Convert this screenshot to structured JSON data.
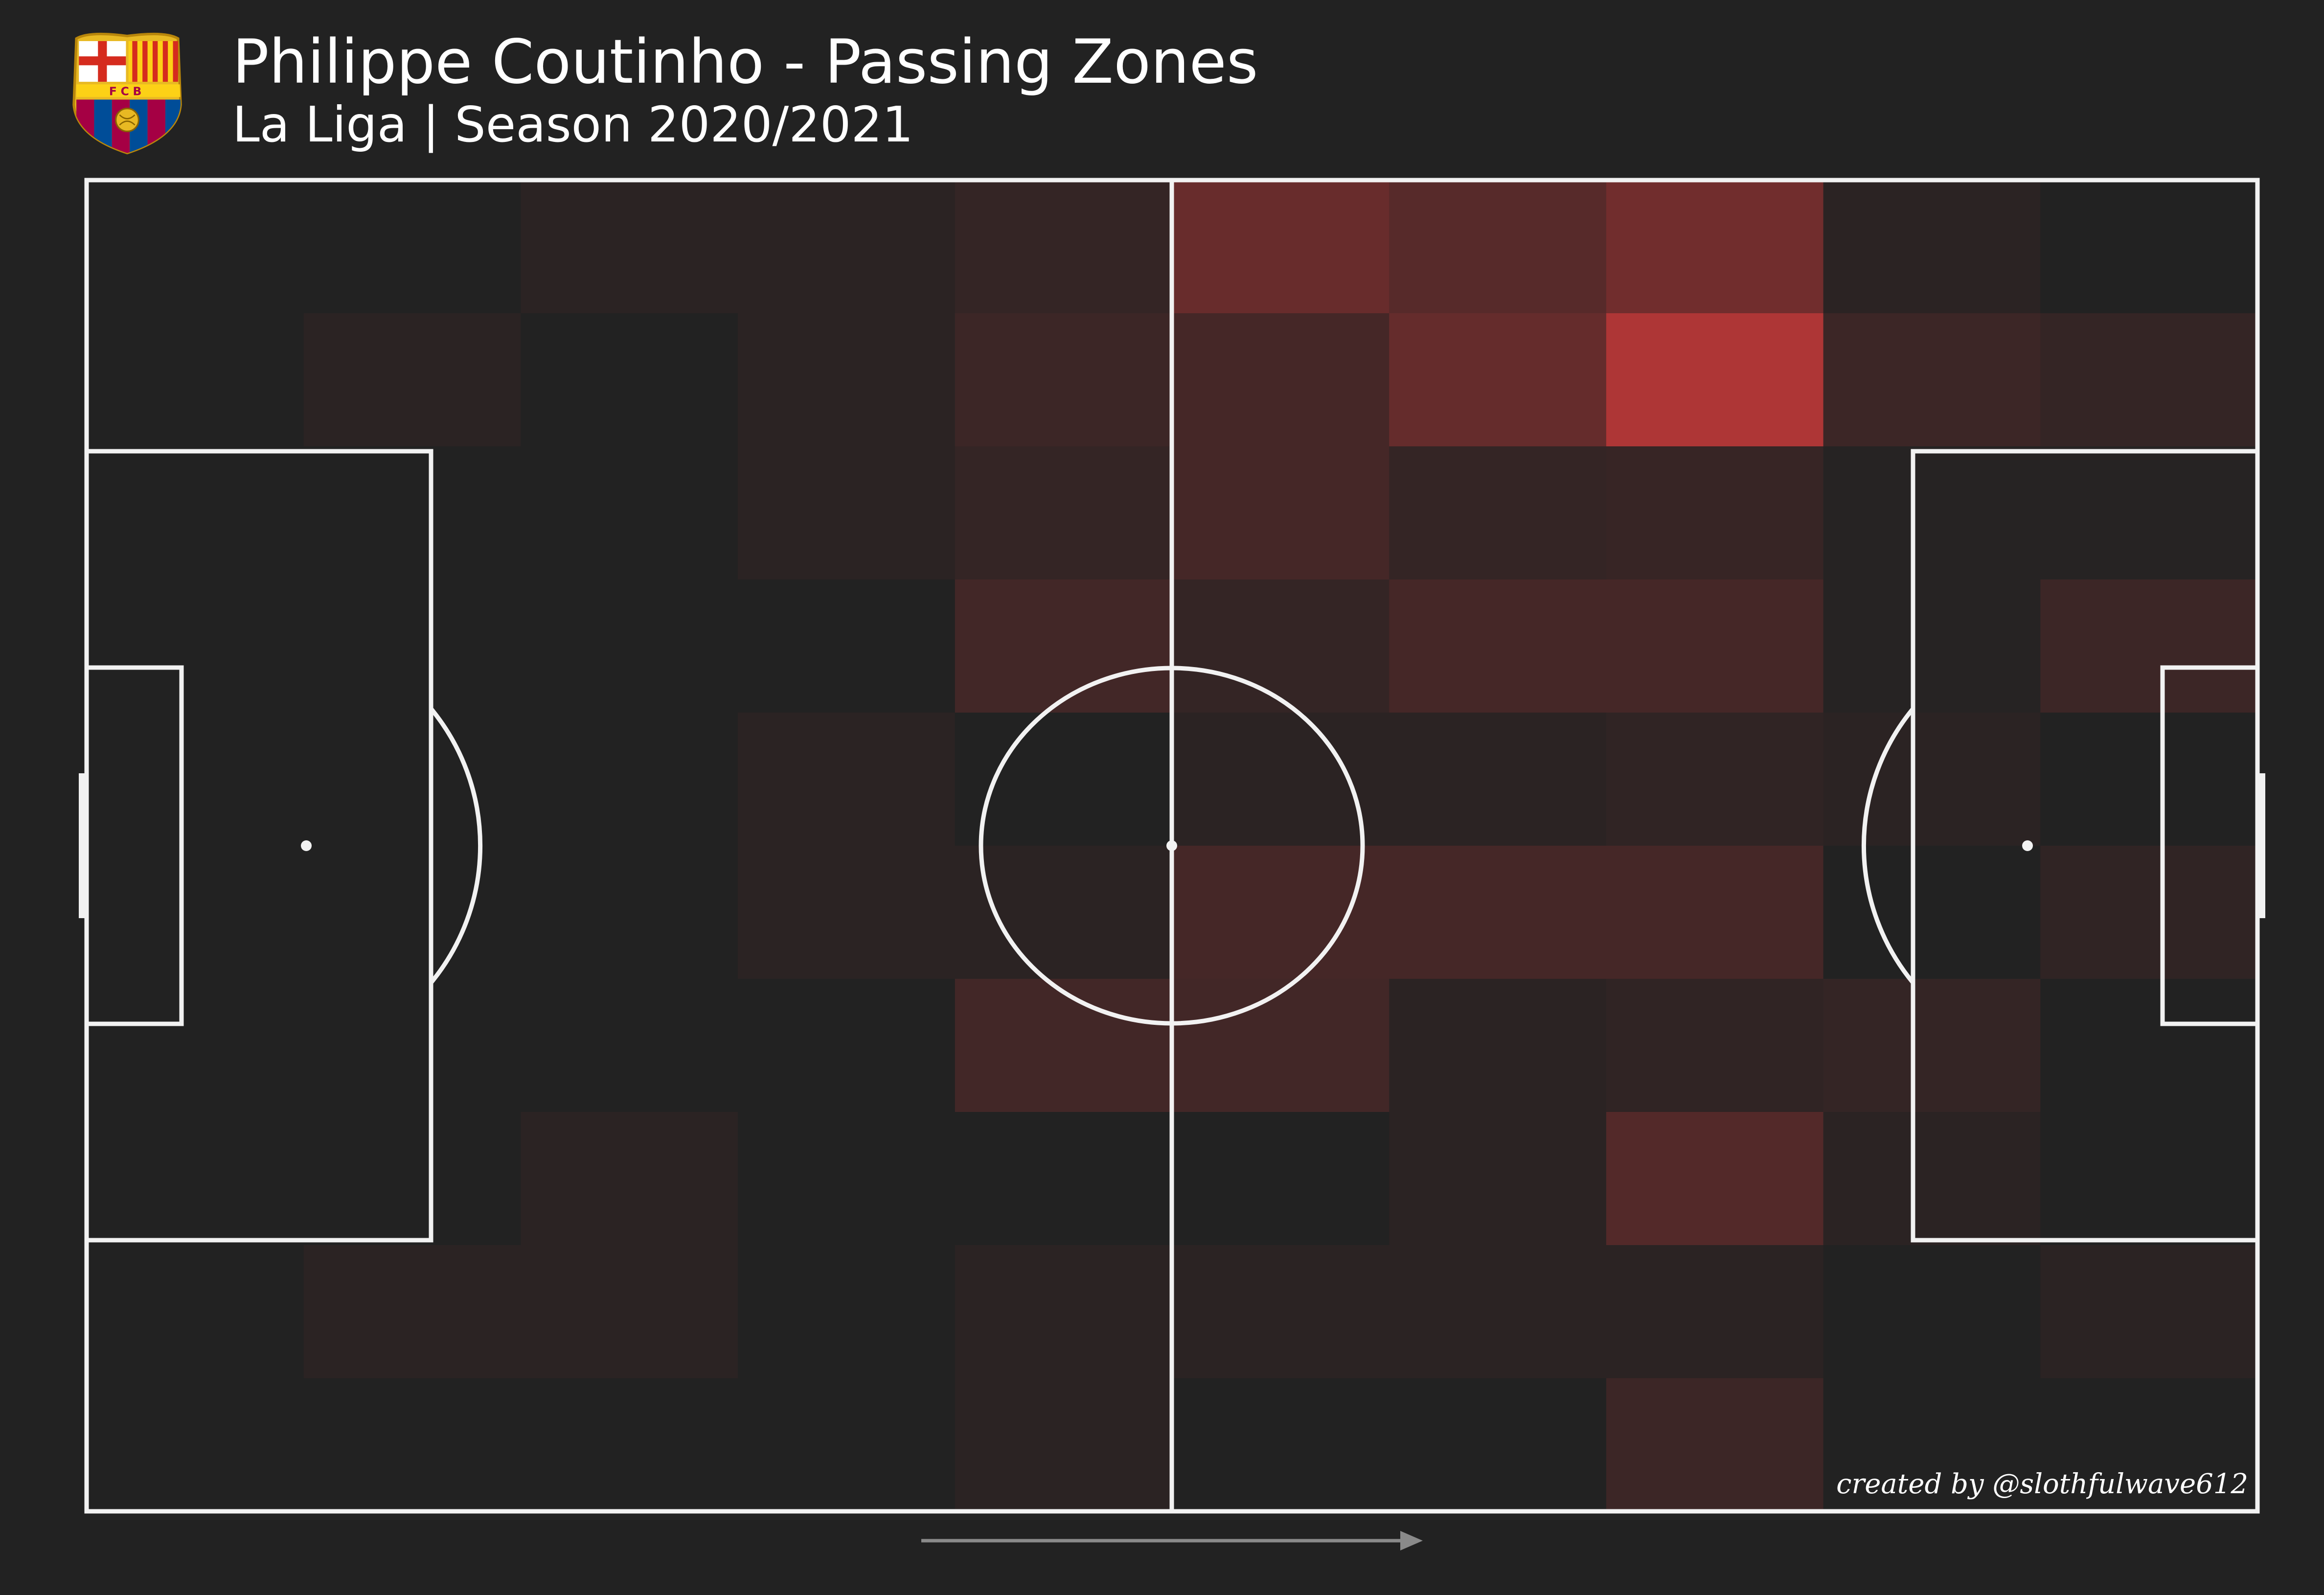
{
  "header": {
    "title": "Philippe Coutinho - Passing Zones",
    "subtitle": "La Liga | Season 2020/2021",
    "crest_text": "FCB"
  },
  "footer": {
    "credit": "created by @slothfulwave612"
  },
  "colors": {
    "background": "#222222",
    "lines": "#ffffff",
    "heat_high": "#d13b3b",
    "arrow": "#8a8a8a"
  },
  "chart_data": {
    "type": "heatmap",
    "description_of_values": "relative pass intensity per zone, 0 (none) to 1 (max)",
    "grid": {
      "columns": 10,
      "rows": 10
    },
    "attack_direction": "left-to-right",
    "values": [
      [
        0.0,
        0.0,
        0.05,
        0.05,
        0.1,
        0.4,
        0.3,
        0.45,
        0.05,
        0.0
      ],
      [
        0.0,
        0.05,
        0.0,
        0.05,
        0.15,
        0.2,
        0.38,
        0.8,
        0.15,
        0.1
      ],
      [
        0.0,
        0.0,
        0.0,
        0.05,
        0.1,
        0.2,
        0.1,
        0.12,
        0.02,
        0.02
      ],
      [
        0.0,
        0.0,
        0.0,
        0.0,
        0.18,
        0.1,
        0.2,
        0.2,
        0.02,
        0.15
      ],
      [
        0.0,
        0.0,
        0.0,
        0.05,
        0.0,
        0.05,
        0.05,
        0.08,
        0.05,
        0.0
      ],
      [
        0.0,
        0.0,
        0.0,
        0.05,
        0.05,
        0.2,
        0.2,
        0.2,
        0.0,
        0.08
      ],
      [
        0.0,
        0.0,
        0.0,
        0.0,
        0.18,
        0.18,
        0.05,
        0.08,
        0.1,
        0.0
      ],
      [
        0.0,
        0.0,
        0.05,
        0.0,
        0.0,
        0.0,
        0.05,
        0.28,
        0.05,
        0.0
      ],
      [
        0.0,
        0.05,
        0.05,
        0.0,
        0.05,
        0.05,
        0.05,
        0.05,
        0.0,
        0.05
      ],
      [
        0.0,
        0.0,
        0.0,
        0.0,
        0.05,
        0.0,
        0.0,
        0.15,
        0.0,
        0.0
      ]
    ]
  }
}
